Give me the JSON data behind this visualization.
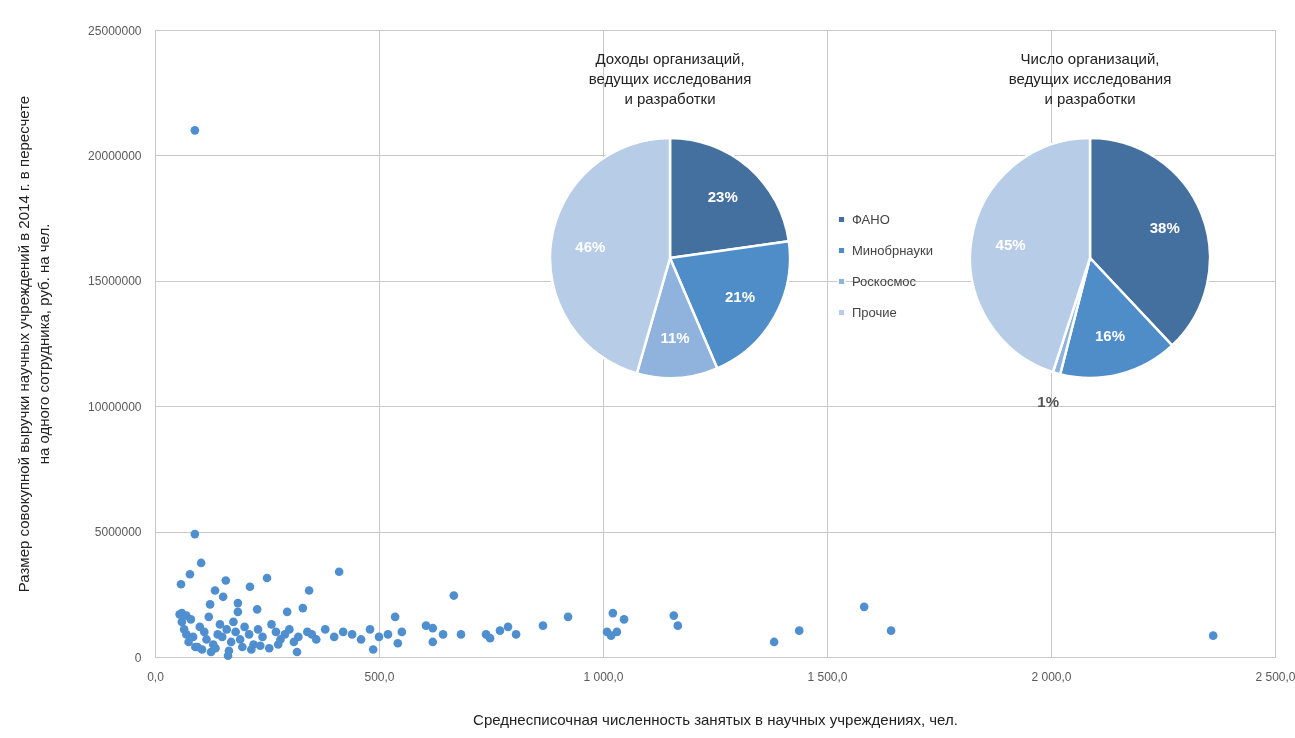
{
  "chart_data": [
    {
      "type": "scatter",
      "xlabel": "Среднесписочная численность занятых в научных учреждениях, чел.",
      "ylabel": "Размер совокупной выручки научных учреждений в 2014 г. в пересчете\nна одного сотрудника, руб. на чел.",
      "color": "#4f8fcf",
      "grid": true,
      "marker": "circle",
      "x": [
        89,
        89,
        103,
        78,
        58,
        250,
        158,
        411,
        344,
        212,
        134,
        152,
        330,
        123,
        185,
        185,
        228,
        667,
        536,
        922,
        866,
        1022,
        1047,
        1158,
        1167,
        1009,
        1031,
        1018,
        1382,
        1438,
        1583,
        1643,
        2362,
        605,
        620,
        643,
        620,
        683,
        739,
        748,
        770,
        788,
        806,
        542,
        551,
        163,
        317,
        487,
        55,
        60,
        65,
        70,
        75,
        80,
        85,
        95,
        100,
        110,
        115,
        120,
        130,
        140,
        145,
        150,
        160,
        170,
        175,
        180,
        190,
        200,
        210,
        220,
        230,
        240,
        260,
        270,
        280,
        290,
        300,
        310,
        320,
        340,
        350,
        360,
        380,
        400,
        420,
        440,
        460,
        480,
        500,
        520,
        90,
        105,
        125,
        135,
        165,
        195,
        215,
        235,
        255,
        275,
        295,
        60,
        70
      ],
      "values": [
        21000000,
        4900000,
        3750000,
        3300000,
        2900000,
        3150000,
        3050000,
        3400000,
        2650000,
        2800000,
        2650000,
        2400000,
        1950000,
        2100000,
        2150000,
        1800000,
        1900000,
        2450000,
        1600000,
        1600000,
        1250000,
        1750000,
        1500000,
        1650000,
        1250000,
        1000000,
        1000000,
        850000,
        600000,
        1050000,
        2000000,
        1050000,
        850000,
        1250000,
        1150000,
        900000,
        600000,
        900000,
        900000,
        750000,
        1050000,
        1200000,
        900000,
        550000,
        1000000,
        50000,
        200000,
        300000,
        1700000,
        1400000,
        1100000,
        900000,
        600000,
        1500000,
        800000,
        400000,
        1200000,
        1000000,
        700000,
        1600000,
        500000,
        900000,
        1300000,
        800000,
        1100000,
        600000,
        1400000,
        1000000,
        700000,
        1200000,
        900000,
        500000,
        1100000,
        800000,
        1300000,
        1000000,
        700000,
        900000,
        1100000,
        600000,
        800000,
        1000000,
        900000,
        700000,
        1100000,
        800000,
        1000000,
        900000,
        700000,
        1100000,
        800000,
        900000,
        400000,
        300000,
        200000,
        350000,
        250000,
        400000,
        300000,
        450000,
        350000,
        500000,
        1800000,
        1750000,
        1650000
      ],
      "xlim": [
        0,
        2500
      ],
      "xticks": [
        {
          "value": 0,
          "label": "0,0"
        },
        {
          "value": 500,
          "label": "500,0"
        },
        {
          "value": 1000,
          "label": "1 000,0"
        },
        {
          "value": 1500,
          "label": "1 500,0"
        },
        {
          "value": 2000,
          "label": "2 000,0"
        },
        {
          "value": 2500,
          "label": "2 500,0"
        }
      ],
      "ylim": [
        0,
        25000000
      ],
      "yticks": [
        0,
        5000000,
        10000000,
        15000000,
        20000000,
        25000000
      ]
    },
    {
      "type": "pie",
      "title": "Доходы организаций,\nведущих исследования\nи разработки",
      "categories": [
        "ФАНО",
        "Минобрнауки",
        "Роскосмос",
        "Прочие"
      ],
      "values": [
        23,
        21,
        11,
        46
      ],
      "colors": [
        "#44709f",
        "#4f8dc9",
        "#8fb3dc",
        "#b7cce6"
      ],
      "value_labels": [
        "23%",
        "21%",
        "11%",
        "46%"
      ],
      "legend": "right"
    },
    {
      "type": "pie",
      "title": "Число организаций,\nведущих исследования\nи разработки",
      "categories": [
        null,
        null,
        null,
        null
      ],
      "values": [
        38,
        16,
        1,
        45
      ],
      "colors": [
        "#44709f",
        "#4f8dc9",
        "#8fb3dc",
        "#b7cce6"
      ],
      "value_labels": [
        "38%",
        "16%",
        "1%",
        "45%"
      ]
    }
  ]
}
